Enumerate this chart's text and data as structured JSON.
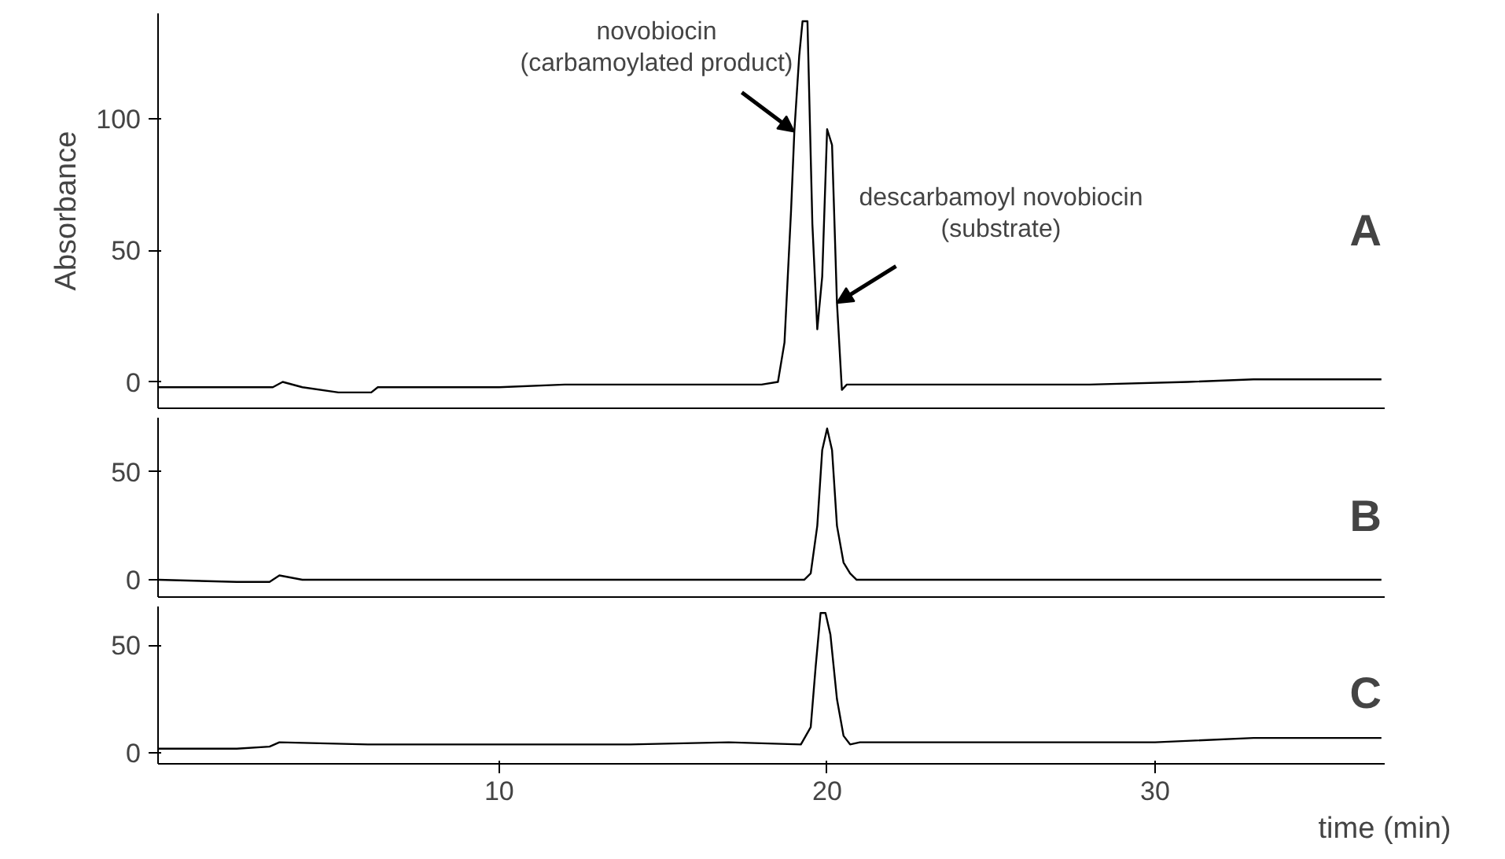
{
  "chart_data": [
    {
      "type": "line",
      "ylabel": "Absorbance",
      "xlim": [
        -0.4,
        37
      ],
      "ylim": [
        -10,
        140
      ],
      "yticks": [
        0,
        50,
        100
      ],
      "tick_labels": "y",
      "x": [
        -0.4,
        1,
        2,
        3.1,
        3.4,
        4,
        5.1,
        6.1,
        6.3,
        8,
        10,
        12,
        14,
        16,
        18,
        18.5,
        18.7,
        18.9,
        19.0,
        19.15,
        19.25,
        19.4,
        19.55,
        19.7,
        19.85,
        20.0,
        20.15,
        20.3,
        20.45,
        20.6,
        22,
        25,
        28,
        31,
        33,
        35,
        36.9
      ],
      "series": [
        {
          "color": "#000000",
          "values": [
            -2,
            -2,
            -2,
            -2,
            0,
            -2,
            -4,
            -4,
            -2,
            -2,
            -2,
            -1,
            -1,
            -1,
            -1,
            0,
            15,
            65,
            95,
            124,
            137,
            137,
            60,
            20,
            40,
            96,
            90,
            30,
            -3,
            -1,
            -1,
            -1,
            -1,
            0,
            1,
            1,
            1
          ]
        }
      ],
      "annotations": [
        {
          "text": "novobiocin\n(carbamoylated product)",
          "x": 19.0,
          "y": 95
        },
        {
          "text": "descarbamoyl novobiocin\n(substrate)",
          "x": 20.3,
          "y": 30
        },
        "A"
      ]
    },
    {
      "type": "line",
      "xlim": [
        -0.4,
        37
      ],
      "ylim": [
        -8,
        75
      ],
      "yticks": [
        0,
        50
      ],
      "tick_labels": "y",
      "x": [
        -0.4,
        2,
        3.0,
        3.3,
        4,
        8,
        12,
        16,
        19.3,
        19.5,
        19.7,
        19.85,
        20.0,
        20.15,
        20.3,
        20.5,
        20.7,
        20.9,
        22,
        26,
        30,
        33,
        36.9
      ],
      "series": [
        {
          "color": "#000000",
          "values": [
            0,
            -1,
            -1,
            2,
            0,
            0,
            0,
            0,
            0,
            3,
            25,
            60,
            70,
            60,
            25,
            8,
            3,
            0,
            0,
            0,
            0,
            0,
            0
          ]
        }
      ],
      "annotations": [
        "B"
      ]
    },
    {
      "type": "line",
      "xlabel": "time (min)",
      "xlim": [
        -0.4,
        37
      ],
      "ylim": [
        -5,
        68
      ],
      "yticks": [
        0,
        50
      ],
      "xticks": [
        10,
        20,
        30
      ],
      "x": [
        -0.4,
        2,
        3.0,
        3.3,
        6,
        10,
        14,
        17,
        19.2,
        19.5,
        19.65,
        19.8,
        19.95,
        20.1,
        20.3,
        20.5,
        20.7,
        21,
        24,
        27,
        30,
        33,
        36.9
      ],
      "series": [
        {
          "color": "#000000",
          "values": [
            2,
            2,
            3,
            5,
            4,
            4,
            4,
            5,
            4,
            12,
            40,
            65,
            65,
            55,
            25,
            8,
            4,
            5,
            5,
            5,
            5,
            7,
            7
          ]
        }
      ],
      "annotations": [
        "C"
      ]
    }
  ]
}
